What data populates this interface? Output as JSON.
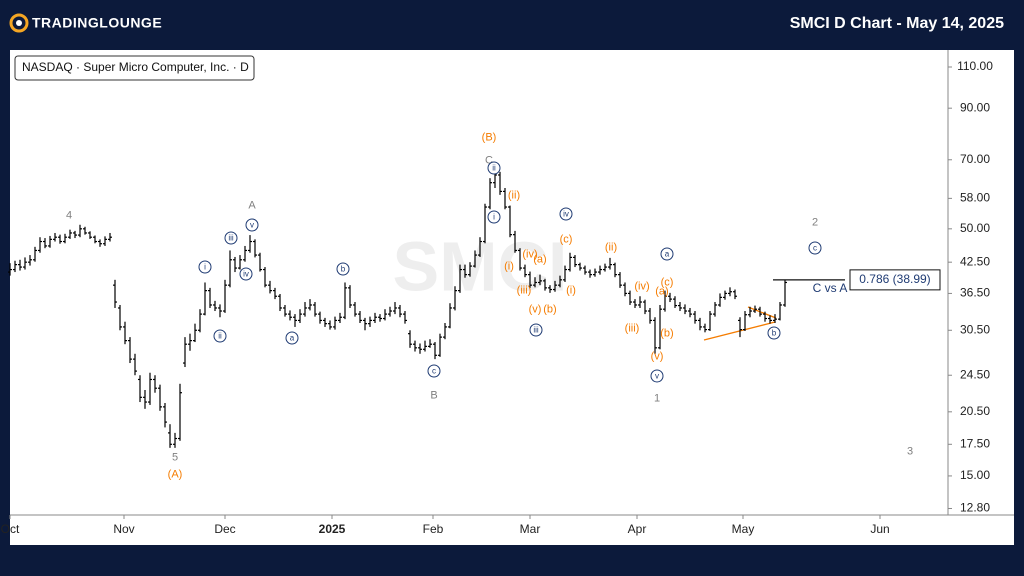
{
  "header": {
    "brand": "TRADINGLOUNGE",
    "title": "SMCI D Chart - May 14, 2025"
  },
  "chart_data": {
    "type": "ohlc",
    "title": "NASDAQ · Super Micro Computer, Inc. · D",
    "watermark": "SMCI",
    "log_scale": true,
    "color": "#000000",
    "ylim": [
      12.4,
      119.5
    ],
    "xlim": [
      0,
      187.6
    ],
    "yticks": [
      {
        "value": 110,
        "label": "110.00"
      },
      {
        "value": 90,
        "label": "90.00"
      },
      {
        "value": 70,
        "label": "70.00"
      },
      {
        "value": 58,
        "label": "58.00"
      },
      {
        "value": 50,
        "label": "50.00"
      },
      {
        "value": 42.5,
        "label": "42.50"
      },
      {
        "value": 36.5,
        "label": "36.50"
      },
      {
        "value": 30.5,
        "label": "30.50"
      },
      {
        "value": 24.5,
        "label": "24.50"
      },
      {
        "value": 20.5,
        "label": "20.50"
      },
      {
        "value": 17.5,
        "label": "17.50"
      },
      {
        "value": 15,
        "label": "15.00"
      },
      {
        "value": 12.8,
        "label": "12.80"
      }
    ],
    "xticks": [
      {
        "value": 0,
        "label": "Oct"
      },
      {
        "value": 22.8,
        "label": "Nov"
      },
      {
        "value": 43,
        "label": "Dec"
      },
      {
        "value": 64.4,
        "label": "2025"
      },
      {
        "value": 84.6,
        "label": "Feb"
      },
      {
        "value": 104,
        "label": "Mar"
      },
      {
        "value": 125.4,
        "label": "Apr"
      },
      {
        "value": 146.6,
        "label": "May"
      },
      {
        "value": 174,
        "label": "Jun"
      }
    ],
    "ohlc": [
      [
        40.5,
        42.3,
        39.8,
        41
      ],
      [
        41,
        42.8,
        40.5,
        42
      ],
      [
        42,
        43,
        40.8,
        41.5
      ],
      [
        41.5,
        43.5,
        41,
        42.5
      ],
      [
        42.5,
        44,
        41.8,
        43
      ],
      [
        43,
        45.8,
        42.6,
        45
      ],
      [
        45,
        48,
        44.5,
        47
      ],
      [
        47,
        47.8,
        45.5,
        46
      ],
      [
        46,
        48.3,
        45.6,
        47.5
      ],
      [
        47.5,
        49,
        47,
        48
      ],
      [
        48,
        48.6,
        46.5,
        47
      ],
      [
        47,
        48.8,
        46.6,
        48
      ],
      [
        48,
        49.8,
        47.6,
        49
      ],
      [
        49,
        49.5,
        47.8,
        48.5
      ],
      [
        48.5,
        51,
        48,
        50
      ],
      [
        50,
        50.5,
        48.6,
        49
      ],
      [
        49,
        49.4,
        47.6,
        48
      ],
      [
        48,
        48.4,
        46.6,
        47
      ],
      [
        47,
        47.5,
        45.8,
        46.5
      ],
      [
        46.5,
        48.2,
        46,
        47.5
      ],
      [
        47.5,
        49,
        47,
        48
      ],
      [
        38,
        39,
        34,
        35
      ],
      [
        34,
        34.5,
        30.5,
        31
      ],
      [
        31,
        31.8,
        28.5,
        29
      ],
      [
        29,
        29.5,
        26,
        26.5
      ],
      [
        26.5,
        27.2,
        24.5,
        25
      ],
      [
        24,
        24.5,
        21.5,
        22
      ],
      [
        22,
        22.8,
        20.8,
        21.5
      ],
      [
        21.5,
        24.8,
        21.2,
        24
      ],
      [
        24,
        24.5,
        22.5,
        23
      ],
      [
        23,
        23.4,
        20.6,
        21
      ],
      [
        21,
        21.4,
        19,
        19.5
      ],
      [
        18.5,
        19.3,
        17.2,
        17.5
      ],
      [
        17.5,
        18.5,
        17.2,
        18
      ],
      [
        18,
        23.5,
        17.8,
        22.5
      ],
      [
        26,
        29.5,
        25.5,
        28.5
      ],
      [
        28.5,
        30,
        27.6,
        29
      ],
      [
        29,
        31.5,
        28.8,
        30.5
      ],
      [
        30.5,
        33.8,
        30.2,
        33
      ],
      [
        33,
        38.5,
        32.8,
        37
      ],
      [
        37,
        37.5,
        34,
        34.5
      ],
      [
        34.5,
        35.2,
        33.5,
        34
      ],
      [
        34,
        34.6,
        32.5,
        33.5
      ],
      [
        33.5,
        39,
        33.2,
        38
      ],
      [
        38,
        45,
        37.6,
        43
      ],
      [
        43,
        43.6,
        40.5,
        41.3
      ],
      [
        41.3,
        44,
        41,
        43
      ],
      [
        43,
        46,
        42.6,
        45
      ],
      [
        45,
        48.5,
        44.5,
        47
      ],
      [
        47,
        47.5,
        43.5,
        44
      ],
      [
        44,
        44.5,
        40.6,
        41
      ],
      [
        41,
        41.5,
        37.6,
        38
      ],
      [
        38,
        38.8,
        36.5,
        37
      ],
      [
        37,
        37.5,
        35.5,
        36
      ],
      [
        36,
        36.4,
        33.5,
        34
      ],
      [
        34,
        34.5,
        32.6,
        33
      ],
      [
        33,
        33.6,
        32,
        32.5
      ],
      [
        32.5,
        33,
        31,
        32
      ],
      [
        32,
        33.8,
        31.6,
        33
      ],
      [
        33,
        35,
        32.6,
        34
      ],
      [
        34,
        35.5,
        33.6,
        34.5
      ],
      [
        34.5,
        35,
        32.6,
        33
      ],
      [
        33,
        33.4,
        31.5,
        32
      ],
      [
        32,
        32.4,
        31,
        31.5
      ],
      [
        31.5,
        32,
        30.6,
        31
      ],
      [
        31,
        32.6,
        30.6,
        32
      ],
      [
        32,
        33.2,
        31.6,
        32.5
      ],
      [
        32.5,
        38.5,
        32.2,
        37.5
      ],
      [
        37.5,
        38,
        34,
        34.5
      ],
      [
        34.5,
        35,
        32.6,
        33
      ],
      [
        33,
        33.5,
        31.6,
        32
      ],
      [
        32,
        32.4,
        30.5,
        31.5
      ],
      [
        31.5,
        32.6,
        31,
        32
      ],
      [
        32,
        33.2,
        31.6,
        32.5
      ],
      [
        32.5,
        33,
        31.8,
        32.3
      ],
      [
        32.3,
        33.8,
        32,
        33
      ],
      [
        33,
        34.2,
        32.6,
        33.5
      ],
      [
        33.5,
        35,
        33,
        34
      ],
      [
        34,
        34.5,
        32.5,
        33
      ],
      [
        33,
        33.5,
        31.5,
        32
      ],
      [
        30,
        30.5,
        28,
        28.5
      ],
      [
        28.5,
        29,
        27.5,
        28
      ],
      [
        28,
        28.6,
        27.2,
        27.8
      ],
      [
        27.8,
        29,
        27.5,
        28.2
      ],
      [
        28.2,
        29.2,
        28,
        28.5
      ],
      [
        28.5,
        28.8,
        26.5,
        27
      ],
      [
        27,
        30,
        26.8,
        29.5
      ],
      [
        29.5,
        31.6,
        29.2,
        31
      ],
      [
        31,
        34.8,
        30.8,
        34
      ],
      [
        34,
        37.8,
        33.6,
        37
      ],
      [
        37,
        42,
        36.6,
        41
      ],
      [
        41,
        42,
        39.4,
        40
      ],
      [
        40,
        42.5,
        39.6,
        41.7
      ],
      [
        41.7,
        45,
        41.4,
        44
      ],
      [
        44,
        48,
        43.6,
        47
      ],
      [
        47,
        56.5,
        46.6,
        55.6
      ],
      [
        55.6,
        64,
        55,
        62.6
      ],
      [
        62.6,
        66.5,
        61,
        65
      ],
      [
        65,
        66,
        59,
        60
      ],
      [
        60,
        61,
        55,
        55.6
      ],
      [
        55.6,
        56,
        48,
        48.6
      ],
      [
        48.6,
        49.5,
        44.5,
        45
      ],
      [
        45,
        45.5,
        40.8,
        41.3
      ],
      [
        41.3,
        42,
        39.5,
        40
      ],
      [
        40,
        40.6,
        37.5,
        38
      ],
      [
        38,
        39.5,
        37.6,
        38.5
      ],
      [
        38.5,
        40,
        38,
        38.8
      ],
      [
        38.8,
        39.2,
        37,
        37.5
      ],
      [
        37.5,
        38,
        36.6,
        37.2
      ],
      [
        37.2,
        38.8,
        36.8,
        38
      ],
      [
        38,
        39.8,
        37.6,
        39
      ],
      [
        39,
        41.8,
        38.6,
        41
      ],
      [
        41,
        44.5,
        40.6,
        43.5
      ],
      [
        43.5,
        44,
        41.5,
        42
      ],
      [
        42,
        42.4,
        40.8,
        41.3
      ],
      [
        41.3,
        41.8,
        40,
        40.5
      ],
      [
        40.5,
        41,
        39.4,
        40
      ],
      [
        40,
        41.2,
        39.6,
        40.5
      ],
      [
        40.5,
        41.8,
        40,
        41
      ],
      [
        41,
        42.2,
        40.6,
        41.5
      ],
      [
        41.5,
        43.4,
        41,
        42
      ],
      [
        42,
        42.4,
        39.5,
        40
      ],
      [
        40,
        40.5,
        37.5,
        38
      ],
      [
        38,
        38.5,
        36,
        36.5
      ],
      [
        36.5,
        37,
        34.5,
        35
      ],
      [
        35,
        35.5,
        34,
        34.5
      ],
      [
        34.5,
        36,
        34,
        35
      ],
      [
        35,
        35.4,
        33,
        33.5
      ],
      [
        33.5,
        34,
        31.5,
        32
      ],
      [
        32,
        32.5,
        27.2,
        28
      ],
      [
        28,
        34.5,
        27.8,
        33.8
      ],
      [
        33.8,
        37,
        33.4,
        36
      ],
      [
        36,
        36.6,
        35,
        35.5
      ],
      [
        35.5,
        36,
        34,
        34.4
      ],
      [
        34.4,
        35,
        33.5,
        34
      ],
      [
        34,
        34.6,
        33,
        33.5
      ],
      [
        33.5,
        34,
        32.5,
        33
      ],
      [
        33,
        33.5,
        31.5,
        32
      ],
      [
        32,
        32.4,
        30.5,
        31
      ],
      [
        31,
        31.5,
        30.2,
        30.6
      ],
      [
        30.6,
        33.5,
        30.4,
        33
      ],
      [
        33,
        35,
        32.6,
        34.5
      ],
      [
        34.5,
        36.5,
        34.2,
        35.8
      ],
      [
        35.8,
        37,
        35.4,
        36.5
      ],
      [
        36.5,
        37.6,
        36,
        36.8
      ],
      [
        36.8,
        37.2,
        35.5,
        36
      ],
      [
        32,
        32.5,
        29.5,
        30.6
      ],
      [
        30.6,
        33.5,
        30.4,
        32.9
      ],
      [
        32.9,
        34.2,
        32.5,
        33.5
      ],
      [
        33.5,
        34.4,
        33.2,
        33.8
      ],
      [
        33.8,
        34.2,
        32.6,
        33
      ],
      [
        33,
        33.4,
        31.8,
        32.3
      ],
      [
        32.3,
        32.8,
        31.5,
        32
      ],
      [
        32,
        33,
        31.6,
        32.2
      ],
      [
        32.2,
        35,
        32,
        34.5
      ],
      [
        34.5,
        39,
        34.2,
        38.5
      ]
    ],
    "level": {
      "value": 38.99,
      "label": "0.786 (38.99)",
      "text": "C vs A"
    },
    "wave_labels": [
      {
        "text": "4",
        "color": "#808080",
        "circled": false
      },
      {
        "text": "5",
        "color": "#808080",
        "circled": false
      },
      {
        "text": "(A)",
        "color": "#f57c00",
        "circled": false
      },
      {
        "text": "A",
        "color": "#808080",
        "circled": false
      },
      {
        "text": "v",
        "color": "#1f3b73",
        "circled": true
      },
      {
        "text": "iii",
        "color": "#1f3b73",
        "circled": true
      },
      {
        "text": "iv",
        "color": "#1f3b73",
        "circled": true
      },
      {
        "text": "i",
        "color": "#1f3b73",
        "circled": true
      },
      {
        "text": "ii",
        "color": "#1f3b73",
        "circled": true
      },
      {
        "text": "a",
        "color": "#1f3b73",
        "circled": true
      },
      {
        "text": "b",
        "color": "#1f3b73",
        "circled": true
      },
      {
        "text": "c",
        "color": "#1f3b73",
        "circled": true
      },
      {
        "text": "B",
        "color": "#808080",
        "circled": false
      },
      {
        "text": "(B)",
        "color": "#f57c00",
        "circled": false
      },
      {
        "text": "C",
        "color": "#808080",
        "circled": false
      },
      {
        "text": "ii",
        "color": "#1f3b73",
        "circled": true
      },
      {
        "text": "i",
        "color": "#1f3b73",
        "circled": true
      },
      {
        "text": "(ii)",
        "color": "#f57c00",
        "circled": false
      },
      {
        "text": "(i)",
        "color": "#f57c00",
        "circled": false
      },
      {
        "text": "(iv)",
        "color": "#f57c00",
        "circled": false
      },
      {
        "text": "(a)",
        "color": "#f57c00",
        "circled": false
      },
      {
        "text": "(iii)",
        "color": "#f57c00",
        "circled": false
      },
      {
        "text": "(v)",
        "color": "#f57c00",
        "circled": false
      },
      {
        "text": "(b)",
        "color": "#f57c00",
        "circled": false
      },
      {
        "text": "iii",
        "color": "#1f3b73",
        "circled": true
      },
      {
        "text": "iv",
        "color": "#1f3b73",
        "circled": true
      },
      {
        "text": "(c)",
        "color": "#f57c00",
        "circled": false
      },
      {
        "text": "(i)",
        "color": "#f57c00",
        "circled": false
      },
      {
        "text": "(ii)",
        "color": "#f57c00",
        "circled": false
      },
      {
        "text": "(iv)",
        "color": "#f57c00",
        "circled": false
      },
      {
        "text": "(iii)",
        "color": "#f57c00",
        "circled": false
      },
      {
        "text": "a",
        "color": "#1f3b73",
        "circled": true
      },
      {
        "text": "(c)",
        "color": "#f57c00",
        "circled": false
      },
      {
        "text": "(a)",
        "color": "#f57c00",
        "circled": false
      },
      {
        "text": "(b)",
        "color": "#f57c00",
        "circled": false
      },
      {
        "text": "(v)",
        "color": "#f57c00",
        "circled": false
      },
      {
        "text": "v",
        "color": "#1f3b73",
        "circled": true
      },
      {
        "text": "1",
        "color": "#808080",
        "circled": false
      },
      {
        "text": "b",
        "color": "#1f3b73",
        "circled": true
      },
      {
        "text": "2",
        "color": "#808080",
        "circled": false
      },
      {
        "text": "c",
        "color": "#1f3b73",
        "circled": true
      },
      {
        "text": "3",
        "color": "#808080",
        "circled": false
      }
    ]
  }
}
